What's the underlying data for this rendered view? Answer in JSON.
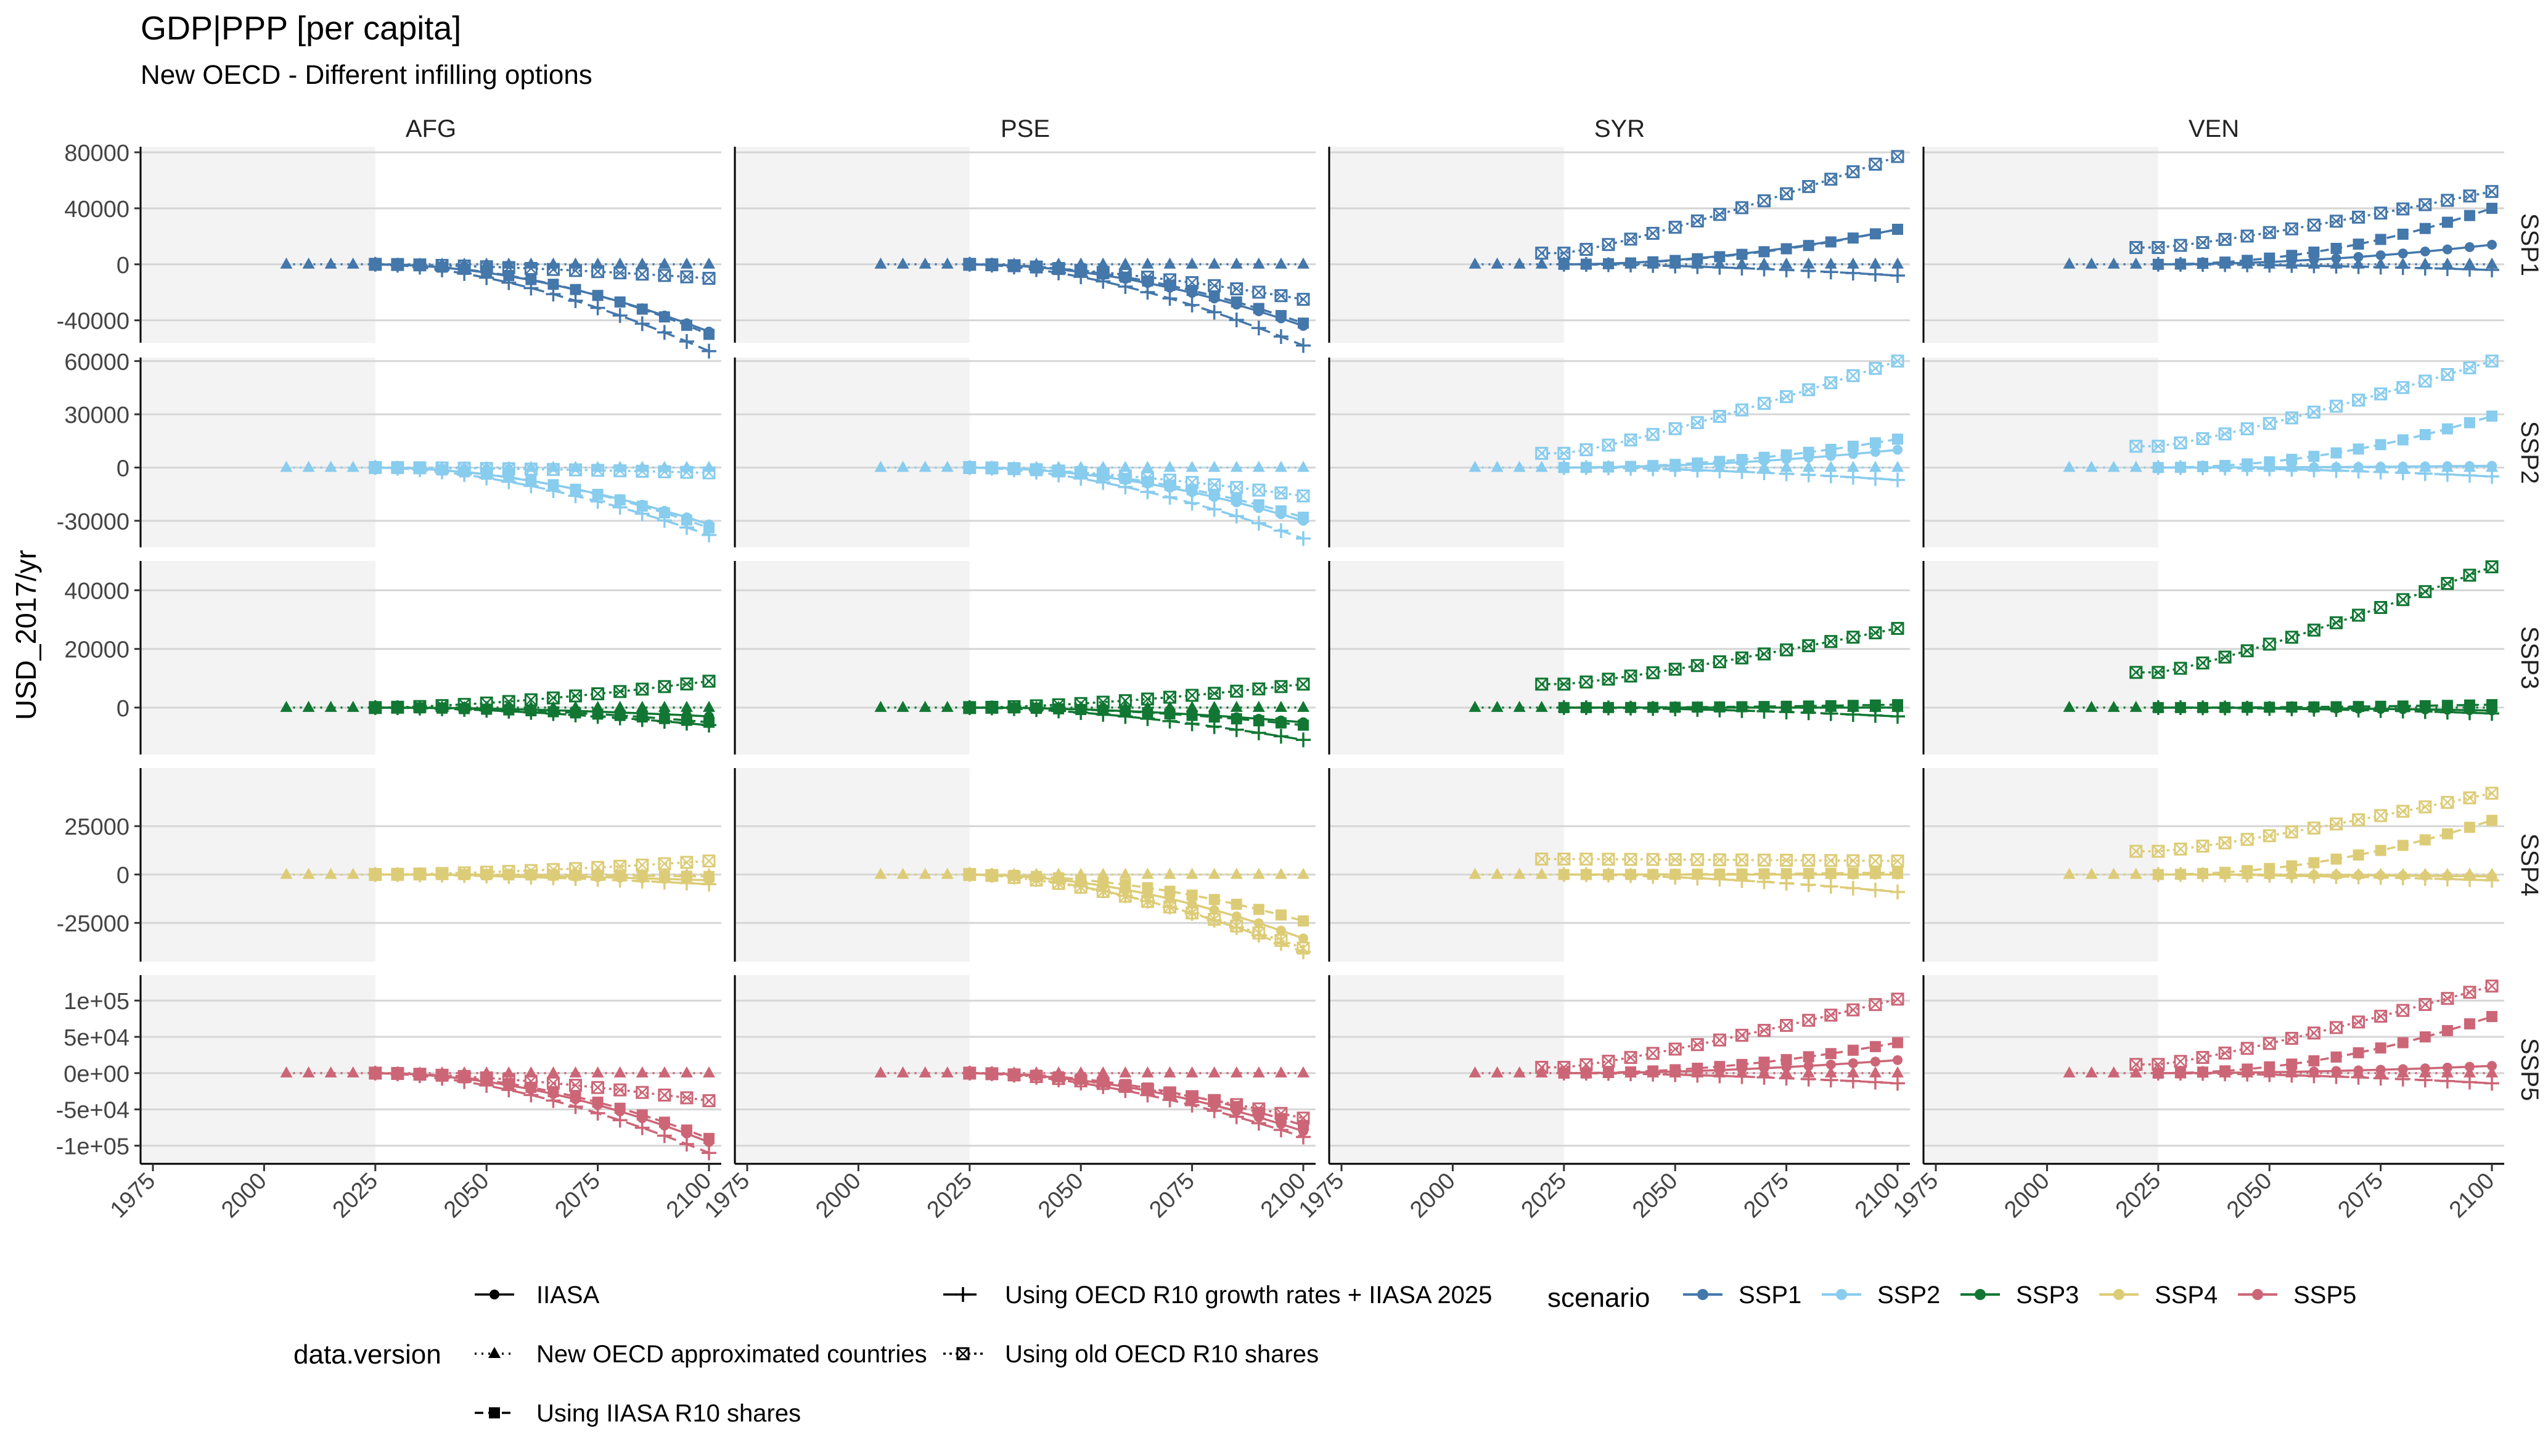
{
  "chart_data": {
    "type": "scatter",
    "title": "GDP|PPP [per capita]",
    "subtitle": "New OECD - Different infilling options",
    "ylabel": "USD_2017/yr",
    "xlabel": "",
    "x_ticks": [
      1975,
      2000,
      2025,
      2050,
      2075,
      2100
    ],
    "x_tick_labels": [
      "1975",
      "2000",
      "2025",
      "2050",
      "2075",
      "2100"
    ],
    "xlim": [
      1975,
      2100
    ],
    "historical_shading": [
      1975,
      2025
    ],
    "columns": [
      "AFG",
      "PSE",
      "SYR",
      "VEN"
    ],
    "rows": [
      {
        "name": "SSP1",
        "ylim": [
          -56000,
          84000
        ],
        "ticks": [
          80000,
          40000,
          0,
          -40000
        ],
        "tick_labels": [
          "80000",
          "40000",
          "0",
          "-40000"
        ]
      },
      {
        "name": "SSP2",
        "ylim": [
          -45000,
          62000
        ],
        "ticks": [
          60000,
          30000,
          0,
          -30000
        ],
        "tick_labels": [
          "60000",
          "30000",
          "0",
          "-30000"
        ]
      },
      {
        "name": "SSP3",
        "ylim": [
          -16000,
          50000
        ],
        "ticks": [
          40000,
          20000,
          0
        ],
        "tick_labels": [
          "40000",
          "20000",
          "0"
        ]
      },
      {
        "name": "SSP4",
        "ylim": [
          -45000,
          55000
        ],
        "ticks": [
          25000,
          0,
          -25000
        ],
        "tick_labels": [
          "25000",
          "0",
          "-25000"
        ]
      },
      {
        "name": "SSP5",
        "ylim": [
          -125000,
          135000
        ],
        "ticks": [
          100000,
          50000,
          0,
          -50000,
          -100000
        ],
        "tick_labels": [
          "1e+05",
          "5e+04",
          "0e+00",
          "-5e+04",
          "-1e+05"
        ]
      }
    ],
    "scenario_colors": {
      "SSP1": "#4477AA",
      "SSP2": "#88CCEE",
      "SSP3": "#117733",
      "SSP4": "#DDCC77",
      "SSP5": "#CC6677"
    },
    "versions": [
      "IIASA",
      "New OECD approximated countries",
      "Using IIASA R10 shares",
      "Using OECD R10 growth rates + IIASA 2025",
      "Using old OECD R10 shares"
    ],
    "series_endpoints": {
      "SSP1": {
        "AFG": {
          "IIASA": [
            -48000
          ],
          "Using IIASA R10 shares": [
            -50000
          ],
          "Using OECD R10 growth rates + IIASA 2025": [
            -62000
          ],
          "Using old OECD R10 shares": [
            -10000
          ]
        },
        "PSE": {
          "IIASA": [
            -44000
          ],
          "Using IIASA R10 shares": [
            -42000
          ],
          "Using OECD R10 growth rates + IIASA 2025": [
            -58000
          ],
          "Using old OECD R10 shares": [
            -25000
          ]
        },
        "SYR": {
          "IIASA": [
            25000
          ],
          "Using IIASA R10 shares": [
            25000
          ],
          "Using OECD R10 growth rates + IIASA 2025": [
            -8000
          ],
          "Using old OECD R10 shares": [
            77000
          ]
        },
        "VEN": {
          "IIASA": [
            14000
          ],
          "Using IIASA R10 shares": [
            40000
          ],
          "Using OECD R10 growth rates + IIASA 2025": [
            -4000
          ],
          "Using old OECD R10 shares": [
            52000
          ]
        }
      }
    },
    "legend_placement": "bottom",
    "legend": {
      "version_title": "data.version",
      "scenario_title": "scenario",
      "version_items": [
        "IIASA",
        "New OECD approximated countries",
        "Using IIASA R10 shares",
        "Using OECD R10 growth rates + IIASA 2025",
        "Using old OECD R10 shares"
      ],
      "scenario_items": [
        "SSP1",
        "SSP2",
        "SSP3",
        "SSP4",
        "SSP5"
      ]
    }
  }
}
